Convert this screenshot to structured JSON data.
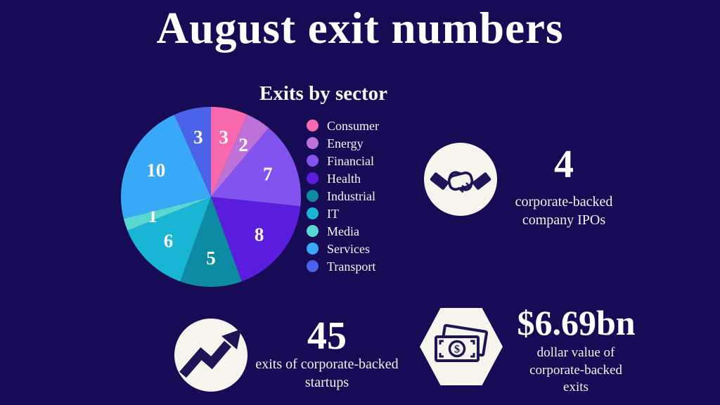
{
  "title": "August exit numbers",
  "chart_data": {
    "type": "pie",
    "title": "Exits by sector",
    "categories": [
      "Consumer",
      "Energy",
      "Financial",
      "Health",
      "Industrial",
      "IT",
      "Media",
      "Services",
      "Transport"
    ],
    "values": [
      3,
      2,
      7,
      8,
      5,
      6,
      1,
      10,
      3
    ],
    "colors": [
      "#f768ae",
      "#bd72da",
      "#8253ee",
      "#5a1ddd",
      "#0d8ba3",
      "#18b5d5",
      "#59d8d2",
      "#39a9f7",
      "#4b62e9"
    ],
    "total": 45,
    "slice_labels_shown": true,
    "legend_position": "right",
    "start_angle": "12 o'clock",
    "direction": "clockwise"
  },
  "stats": {
    "ipos": {
      "value": "4",
      "label": "corporate-backed company IPOs",
      "icon": "handshake-icon",
      "icon_shape": "circle"
    },
    "exits": {
      "value": "45",
      "label": "exits of corporate-backed startups",
      "icon": "trending-up-arrow-icon",
      "icon_shape": "circle"
    },
    "value": {
      "value": "$6.69bn",
      "label": "dollar value of corporate-backed exits",
      "icon": "banknote-icon",
      "icon_shape": "hexagon"
    }
  },
  "colors": {
    "background": "#180b56",
    "text": "#ffffff",
    "icon_background": "#f7f4ee",
    "icon_glyph": "#1e1557"
  }
}
